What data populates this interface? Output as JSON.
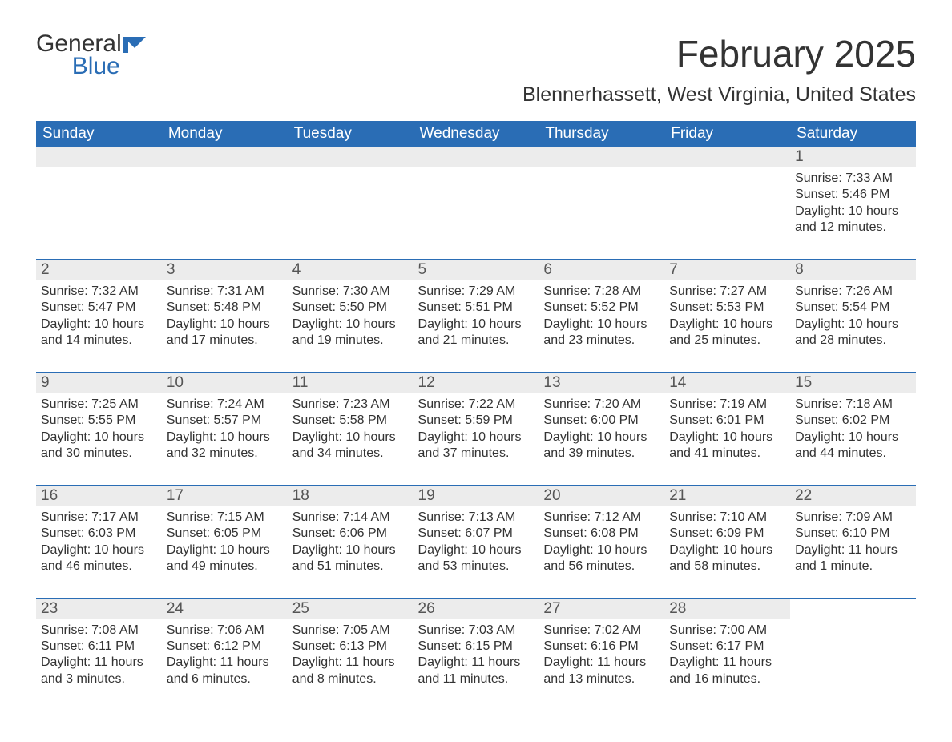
{
  "logo": {
    "text1": "General",
    "text2": "Blue",
    "icon_color": "#2a6db5"
  },
  "title": "February 2025",
  "location": "Blennerhassett, West Virginia, United States",
  "colors": {
    "header_bg": "#2a6db5",
    "header_text": "#ffffff",
    "row_border": "#2a6db5",
    "daynum_bg": "#ececec",
    "body_text": "#333333",
    "page_bg": "#ffffff"
  },
  "columns": [
    "Sunday",
    "Monday",
    "Tuesday",
    "Wednesday",
    "Thursday",
    "Friday",
    "Saturday"
  ],
  "weeks": [
    [
      null,
      null,
      null,
      null,
      null,
      null,
      {
        "day": "1",
        "sunrise": "Sunrise: 7:33 AM",
        "sunset": "Sunset: 5:46 PM",
        "daylight": "Daylight: 10 hours and 12 minutes."
      }
    ],
    [
      {
        "day": "2",
        "sunrise": "Sunrise: 7:32 AM",
        "sunset": "Sunset: 5:47 PM",
        "daylight": "Daylight: 10 hours and 14 minutes."
      },
      {
        "day": "3",
        "sunrise": "Sunrise: 7:31 AM",
        "sunset": "Sunset: 5:48 PM",
        "daylight": "Daylight: 10 hours and 17 minutes."
      },
      {
        "day": "4",
        "sunrise": "Sunrise: 7:30 AM",
        "sunset": "Sunset: 5:50 PM",
        "daylight": "Daylight: 10 hours and 19 minutes."
      },
      {
        "day": "5",
        "sunrise": "Sunrise: 7:29 AM",
        "sunset": "Sunset: 5:51 PM",
        "daylight": "Daylight: 10 hours and 21 minutes."
      },
      {
        "day": "6",
        "sunrise": "Sunrise: 7:28 AM",
        "sunset": "Sunset: 5:52 PM",
        "daylight": "Daylight: 10 hours and 23 minutes."
      },
      {
        "day": "7",
        "sunrise": "Sunrise: 7:27 AM",
        "sunset": "Sunset: 5:53 PM",
        "daylight": "Daylight: 10 hours and 25 minutes."
      },
      {
        "day": "8",
        "sunrise": "Sunrise: 7:26 AM",
        "sunset": "Sunset: 5:54 PM",
        "daylight": "Daylight: 10 hours and 28 minutes."
      }
    ],
    [
      {
        "day": "9",
        "sunrise": "Sunrise: 7:25 AM",
        "sunset": "Sunset: 5:55 PM",
        "daylight": "Daylight: 10 hours and 30 minutes."
      },
      {
        "day": "10",
        "sunrise": "Sunrise: 7:24 AM",
        "sunset": "Sunset: 5:57 PM",
        "daylight": "Daylight: 10 hours and 32 minutes."
      },
      {
        "day": "11",
        "sunrise": "Sunrise: 7:23 AM",
        "sunset": "Sunset: 5:58 PM",
        "daylight": "Daylight: 10 hours and 34 minutes."
      },
      {
        "day": "12",
        "sunrise": "Sunrise: 7:22 AM",
        "sunset": "Sunset: 5:59 PM",
        "daylight": "Daylight: 10 hours and 37 minutes."
      },
      {
        "day": "13",
        "sunrise": "Sunrise: 7:20 AM",
        "sunset": "Sunset: 6:00 PM",
        "daylight": "Daylight: 10 hours and 39 minutes."
      },
      {
        "day": "14",
        "sunrise": "Sunrise: 7:19 AM",
        "sunset": "Sunset: 6:01 PM",
        "daylight": "Daylight: 10 hours and 41 minutes."
      },
      {
        "day": "15",
        "sunrise": "Sunrise: 7:18 AM",
        "sunset": "Sunset: 6:02 PM",
        "daylight": "Daylight: 10 hours and 44 minutes."
      }
    ],
    [
      {
        "day": "16",
        "sunrise": "Sunrise: 7:17 AM",
        "sunset": "Sunset: 6:03 PM",
        "daylight": "Daylight: 10 hours and 46 minutes."
      },
      {
        "day": "17",
        "sunrise": "Sunrise: 7:15 AM",
        "sunset": "Sunset: 6:05 PM",
        "daylight": "Daylight: 10 hours and 49 minutes."
      },
      {
        "day": "18",
        "sunrise": "Sunrise: 7:14 AM",
        "sunset": "Sunset: 6:06 PM",
        "daylight": "Daylight: 10 hours and 51 minutes."
      },
      {
        "day": "19",
        "sunrise": "Sunrise: 7:13 AM",
        "sunset": "Sunset: 6:07 PM",
        "daylight": "Daylight: 10 hours and 53 minutes."
      },
      {
        "day": "20",
        "sunrise": "Sunrise: 7:12 AM",
        "sunset": "Sunset: 6:08 PM",
        "daylight": "Daylight: 10 hours and 56 minutes."
      },
      {
        "day": "21",
        "sunrise": "Sunrise: 7:10 AM",
        "sunset": "Sunset: 6:09 PM",
        "daylight": "Daylight: 10 hours and 58 minutes."
      },
      {
        "day": "22",
        "sunrise": "Sunrise: 7:09 AM",
        "sunset": "Sunset: 6:10 PM",
        "daylight": "Daylight: 11 hours and 1 minute."
      }
    ],
    [
      {
        "day": "23",
        "sunrise": "Sunrise: 7:08 AM",
        "sunset": "Sunset: 6:11 PM",
        "daylight": "Daylight: 11 hours and 3 minutes."
      },
      {
        "day": "24",
        "sunrise": "Sunrise: 7:06 AM",
        "sunset": "Sunset: 6:12 PM",
        "daylight": "Daylight: 11 hours and 6 minutes."
      },
      {
        "day": "25",
        "sunrise": "Sunrise: 7:05 AM",
        "sunset": "Sunset: 6:13 PM",
        "daylight": "Daylight: 11 hours and 8 minutes."
      },
      {
        "day": "26",
        "sunrise": "Sunrise: 7:03 AM",
        "sunset": "Sunset: 6:15 PM",
        "daylight": "Daylight: 11 hours and 11 minutes."
      },
      {
        "day": "27",
        "sunrise": "Sunrise: 7:02 AM",
        "sunset": "Sunset: 6:16 PM",
        "daylight": "Daylight: 11 hours and 13 minutes."
      },
      {
        "day": "28",
        "sunrise": "Sunrise: 7:00 AM",
        "sunset": "Sunset: 6:17 PM",
        "daylight": "Daylight: 11 hours and 16 minutes."
      },
      null
    ]
  ]
}
